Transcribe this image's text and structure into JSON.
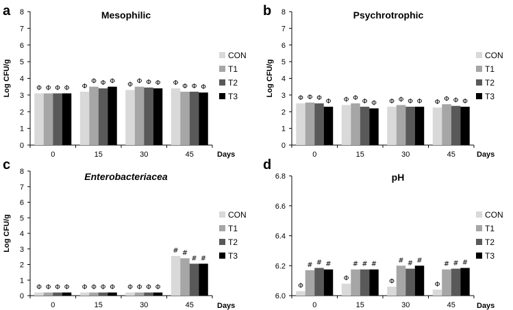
{
  "chart_data": [
    {
      "type": "bar",
      "letter": "a",
      "title": "Mesophilic",
      "title_italic": false,
      "xlabel": "Days",
      "ylabel": "Log CFU/g",
      "categories": [
        "0",
        "15",
        "30",
        "45"
      ],
      "ylim": [
        0,
        8
      ],
      "yticks": [
        "0",
        "1",
        "2",
        "3",
        "4",
        "5",
        "6",
        "7",
        "8"
      ],
      "series": [
        {
          "name": "CON",
          "color": "#d9d9d9",
          "values": [
            3.1,
            3.2,
            3.3,
            3.4
          ],
          "marks": [
            "Φ",
            "Φ",
            "Φ",
            "Φ"
          ]
        },
        {
          "name": "T1",
          "color": "#a6a6a6",
          "values": [
            3.1,
            3.5,
            3.5,
            3.2
          ],
          "marks": [
            "Φ",
            "Φ",
            "Φ",
            "Φ"
          ]
        },
        {
          "name": "T2",
          "color": "#595959",
          "values": [
            3.1,
            3.4,
            3.45,
            3.2
          ],
          "marks": [
            "Φ",
            "Φ",
            "Φ",
            "Φ"
          ]
        },
        {
          "name": "T3",
          "color": "#000000",
          "values": [
            3.1,
            3.5,
            3.4,
            3.15
          ],
          "marks": [
            "Φ",
            "Φ",
            "Φ",
            "Φ"
          ]
        }
      ]
    },
    {
      "type": "bar",
      "letter": "b",
      "title": "Psychrotrophic",
      "title_italic": false,
      "xlabel": "Days",
      "ylabel": "Log CFU/g",
      "categories": [
        "0",
        "15",
        "30",
        "45"
      ],
      "ylim": [
        0,
        8
      ],
      "yticks": [
        "0",
        "1",
        "2",
        "3",
        "4",
        "5",
        "6",
        "7",
        "8"
      ],
      "series": [
        {
          "name": "CON",
          "color": "#d9d9d9",
          "values": [
            2.5,
            2.4,
            2.3,
            2.25
          ],
          "marks": [
            "Φ",
            "Φ",
            "Φ",
            "Φ"
          ]
        },
        {
          "name": "T1",
          "color": "#a6a6a6",
          "values": [
            2.55,
            2.5,
            2.4,
            2.45
          ],
          "marks": [
            "Φ",
            "Φ",
            "Φ",
            "Φ"
          ]
        },
        {
          "name": "T2",
          "color": "#595959",
          "values": [
            2.5,
            2.3,
            2.3,
            2.35
          ],
          "marks": [
            "Φ",
            "Φ",
            "Φ",
            "Φ"
          ]
        },
        {
          "name": "T3",
          "color": "#000000",
          "values": [
            2.3,
            2.2,
            2.3,
            2.3
          ],
          "marks": [
            "Φ",
            "Φ",
            "Φ",
            "Φ"
          ]
        }
      ]
    },
    {
      "type": "bar",
      "letter": "c",
      "title": "Enterobacteriacea",
      "title_italic": true,
      "xlabel": "Days",
      "ylabel": "Log CFU/g",
      "categories": [
        "0",
        "15",
        "30",
        "45"
      ],
      "ylim": [
        0,
        8
      ],
      "yticks": [
        "0",
        "1",
        "2",
        "3",
        "4",
        "5",
        "6",
        "7",
        "8"
      ],
      "series": [
        {
          "name": "CON",
          "color": "#d9d9d9",
          "values": [
            0.2,
            0.2,
            0.2,
            2.55
          ],
          "marks": [
            "Φ",
            "Φ",
            "Φ",
            "#"
          ]
        },
        {
          "name": "T1",
          "color": "#a6a6a6",
          "values": [
            0.2,
            0.2,
            0.2,
            2.4
          ],
          "marks": [
            "Φ",
            "Φ",
            "Φ",
            "#"
          ]
        },
        {
          "name": "T2",
          "color": "#595959",
          "values": [
            0.2,
            0.2,
            0.2,
            2.05
          ],
          "marks": [
            "Φ",
            "Φ",
            "Φ",
            "#"
          ]
        },
        {
          "name": "T3",
          "color": "#000000",
          "values": [
            0.2,
            0.2,
            0.2,
            2.05
          ],
          "marks": [
            "Φ",
            "Φ",
            "Φ",
            "#"
          ]
        }
      ]
    },
    {
      "type": "bar",
      "letter": "d",
      "title": "pH",
      "title_italic": false,
      "xlabel": "Days",
      "ylabel": "",
      "categories": [
        "0",
        "15",
        "30",
        "45"
      ],
      "ylim": [
        6.0,
        6.8
      ],
      "yticks": [
        "6.0",
        "6.2",
        "6.4",
        "6.6",
        "6.8"
      ],
      "series": [
        {
          "name": "CON",
          "color": "#d9d9d9",
          "values": [
            6.03,
            6.08,
            6.06,
            6.04
          ],
          "marks": [
            "Φ",
            "Φ",
            "Φ",
            "Φ"
          ]
        },
        {
          "name": "T1",
          "color": "#a6a6a6",
          "values": [
            6.17,
            6.175,
            6.2,
            6.175
          ],
          "marks": [
            "#",
            "#",
            "#",
            "#"
          ]
        },
        {
          "name": "T2",
          "color": "#595959",
          "values": [
            6.185,
            6.175,
            6.18,
            6.18
          ],
          "marks": [
            "#",
            "#",
            "#",
            "#"
          ]
        },
        {
          "name": "T3",
          "color": "#000000",
          "values": [
            6.175,
            6.175,
            6.2,
            6.185
          ],
          "marks": [
            "#",
            "#",
            "#",
            "#"
          ]
        }
      ]
    }
  ]
}
